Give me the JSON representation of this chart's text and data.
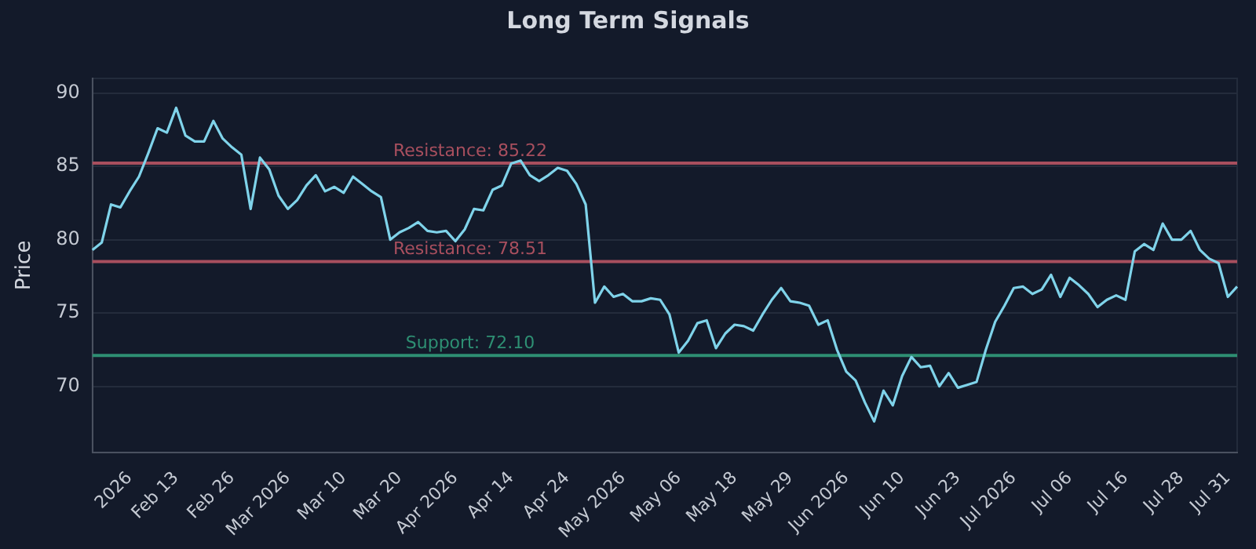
{
  "chart_data": {
    "type": "line",
    "title": "Long Term Signals",
    "ylabel": "Price",
    "categories": [
      null,
      null,
      null,
      null,
      "2026",
      null,
      null,
      null,
      null,
      "Feb 13",
      null,
      null,
      null,
      null,
      null,
      "Feb 26",
      null,
      null,
      null,
      null,
      null,
      "Mar 2026",
      null,
      null,
      null,
      null,
      null,
      "Mar 10",
      null,
      null,
      null,
      null,
      null,
      "Mar 20",
      null,
      null,
      null,
      null,
      null,
      "Apr 2026",
      null,
      null,
      null,
      null,
      null,
      "Apr 14",
      null,
      null,
      null,
      null,
      null,
      "Apr 24",
      null,
      null,
      null,
      null,
      null,
      "May 2026",
      null,
      null,
      null,
      null,
      null,
      "May 06",
      null,
      null,
      null,
      null,
      null,
      "May 18",
      null,
      null,
      null,
      null,
      null,
      "May 29",
      null,
      null,
      null,
      null,
      null,
      "Jun 2026",
      null,
      null,
      null,
      null,
      null,
      "Jun 10",
      null,
      null,
      null,
      null,
      null,
      "Jun 23",
      null,
      null,
      null,
      null,
      null,
      "Jul 2026",
      null,
      null,
      null,
      null,
      null,
      "Jul 06",
      null,
      null,
      null,
      null,
      null,
      "Jul 16",
      null,
      null,
      null,
      null,
      null,
      "Jul 28",
      null,
      null,
      null,
      null,
      "Jul 31",
      null
    ],
    "series": [
      {
        "color": "#7fd3ea",
        "values": [
          79.3,
          79.8,
          82.4,
          82.2,
          83.3,
          84.3,
          85.9,
          87.6,
          87.3,
          89.0,
          87.1,
          86.7,
          86.7,
          88.1,
          86.9,
          86.3,
          85.8,
          82.1,
          85.6,
          84.8,
          83.0,
          82.1,
          82.7,
          83.7,
          84.4,
          83.3,
          83.6,
          83.2,
          84.3,
          83.8,
          83.3,
          82.9,
          80.0,
          80.5,
          80.8,
          81.2,
          80.6,
          80.5,
          80.6,
          79.9,
          80.7,
          82.1,
          82.0,
          83.4,
          83.7,
          85.2,
          85.4,
          84.4,
          84.0,
          84.4,
          84.9,
          84.7,
          83.8,
          82.4,
          75.7,
          76.8,
          76.1,
          76.3,
          75.8,
          75.8,
          76.0,
          75.9,
          74.9,
          72.3,
          73.1,
          74.3,
          74.5,
          72.6,
          73.6,
          74.2,
          74.1,
          73.8,
          74.9,
          75.9,
          76.7,
          75.8,
          75.7,
          75.5,
          74.2,
          74.5,
          72.5,
          71.0,
          70.4,
          68.9,
          67.6,
          69.7,
          68.7,
          70.7,
          72.0,
          71.3,
          71.4,
          70.0,
          70.9,
          69.9,
          70.1,
          70.3,
          72.5,
          74.4,
          75.5,
          76.7,
          76.8,
          76.3,
          76.6,
          77.6,
          76.1,
          77.4,
          76.9,
          76.3,
          75.4,
          75.9,
          76.2,
          75.9,
          79.2,
          79.7,
          79.3,
          81.1,
          80.0,
          80.0,
          80.6,
          79.3,
          78.7,
          78.4,
          76.1,
          76.8
        ]
      }
    ],
    "ylim": [
      65.5,
      91
    ],
    "yticks": [
      70,
      75,
      80,
      85,
      90
    ],
    "grid": "y",
    "legend": false,
    "marker": "none",
    "line_style": "solid",
    "ref_lines": [
      {
        "axis": "y",
        "value": 85.22,
        "label": "Resistance: 85.22",
        "color": "#a84f5e"
      },
      {
        "axis": "y",
        "value": 78.51,
        "label": "Resistance: 78.51",
        "color": "#a84f5e"
      },
      {
        "axis": "y",
        "value": 72.1,
        "label": "Support: 72.10",
        "color": "#2e8f73"
      }
    ]
  }
}
